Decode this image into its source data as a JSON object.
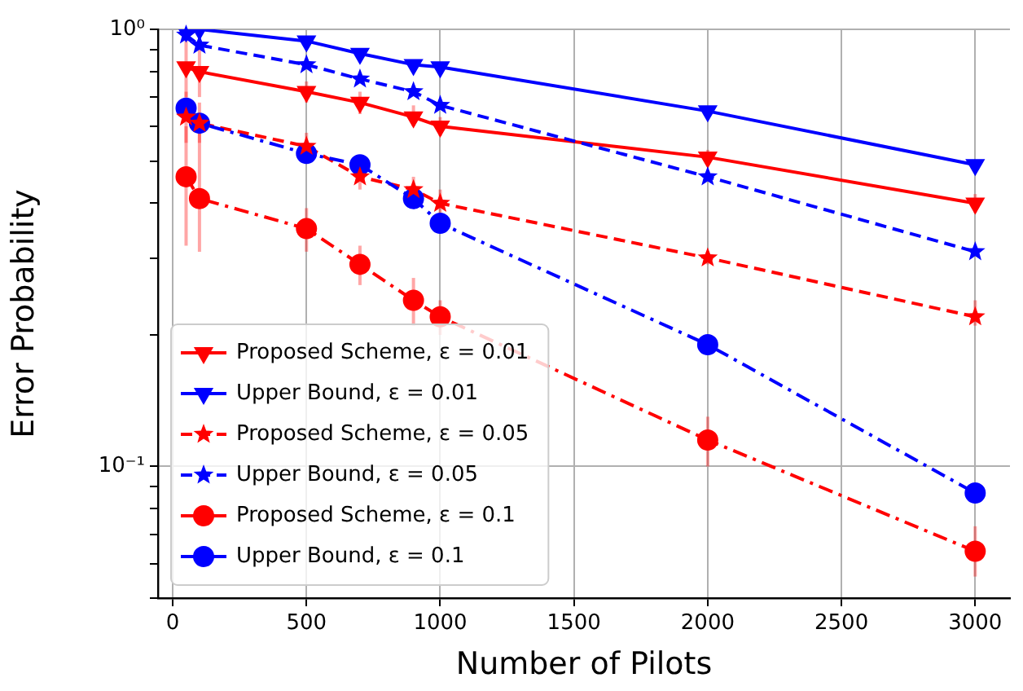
{
  "chart_data": {
    "type": "line",
    "xlabel": "Number of Pilots",
    "ylabel": "Error Probability",
    "log": "y",
    "grid": true,
    "legend": "bottom left",
    "x": [
      50,
      100,
      500,
      700,
      900,
      1000,
      2000,
      3000
    ],
    "xlim": [
      -55,
      3130
    ],
    "xticks": [
      0,
      500,
      1000,
      1500,
      2000,
      2500,
      3000
    ],
    "ylim": [
      0.05,
      1
    ],
    "yticks": [
      {
        "value": 0.05,
        "label": null
      },
      {
        "value": 0.06,
        "label": null
      },
      {
        "value": 0.07,
        "label": null
      },
      {
        "value": 0.08,
        "label": null
      },
      {
        "value": 0.09,
        "label": null
      },
      {
        "value": 0.1,
        "label": "10⁻¹"
      },
      {
        "value": 0.2,
        "label": null
      },
      {
        "value": 0.3,
        "label": null
      },
      {
        "value": 0.4,
        "label": null
      },
      {
        "value": 0.5,
        "label": null
      },
      {
        "value": 0.6,
        "label": null
      },
      {
        "value": 0.7,
        "label": null
      },
      {
        "value": 0.8,
        "label": null
      },
      {
        "value": 0.9,
        "label": null
      },
      {
        "value": 1,
        "label": "10⁰"
      }
    ],
    "series": [
      {
        "name": "Proposed Scheme, ε = 0.01",
        "color": "#ff0000",
        "marker": "triangle",
        "line_style": "solid",
        "values": [
          0.82,
          0.8,
          0.72,
          0.68,
          0.63,
          0.6,
          0.51,
          0.4
        ],
        "errors": [
          [
            0.7,
            0.95
          ],
          [
            0.7,
            0.92
          ],
          [
            0.68,
            0.76
          ],
          [
            0.64,
            0.72
          ],
          [
            0.6,
            0.67
          ],
          [
            0.57,
            0.63
          ],
          [
            0.49,
            0.53
          ],
          [
            0.38,
            0.42
          ]
        ]
      },
      {
        "name": "Upper Bound, ε = 0.01",
        "color": "#0000ff",
        "marker": "triangle",
        "line_style": "solid",
        "values": [
          0.99,
          1,
          0.94,
          0.88,
          0.83,
          0.82,
          0.65,
          0.49
        ]
      },
      {
        "name": "Proposed Scheme, ε = 0.05",
        "color": "#ff0000",
        "marker": "star",
        "line_style": "dashed",
        "values": [
          0.63,
          0.61,
          0.54,
          0.46,
          0.43,
          0.4,
          0.3,
          0.22
        ],
        "errors": [
          [
            0.55,
            0.72
          ],
          [
            0.55,
            0.68
          ],
          [
            0.5,
            0.58
          ],
          [
            0.43,
            0.49
          ],
          [
            0.4,
            0.46
          ],
          [
            0.38,
            0.43
          ],
          [
            0.29,
            0.31
          ],
          [
            0.21,
            0.24
          ]
        ]
      },
      {
        "name": "Upper Bound, ε = 0.05",
        "color": "#0000ff",
        "marker": "star",
        "line_style": "dashed",
        "values": [
          0.97,
          0.92,
          0.83,
          0.77,
          0.72,
          0.67,
          0.46,
          0.31
        ]
      },
      {
        "name": "Proposed Scheme, ε = 0.1",
        "color": "#ff0000",
        "marker": "circle",
        "line_style": "dashdot",
        "values": [
          0.46,
          0.41,
          0.35,
          0.29,
          0.24,
          0.22,
          0.115,
          0.064
        ],
        "errors": [
          [
            0.32,
            0.6
          ],
          [
            0.31,
            0.6
          ],
          [
            0.31,
            0.39
          ],
          [
            0.26,
            0.32
          ],
          [
            0.21,
            0.27
          ],
          [
            0.2,
            0.24
          ],
          [
            0.1,
            0.13
          ],
          [
            0.056,
            0.073
          ]
        ]
      },
      {
        "name": "Upper Bound, ε = 0.1",
        "color": "#0000ff",
        "marker": "circle",
        "line_style": "dashdot",
        "values": [
          0.66,
          0.61,
          0.52,
          0.49,
          0.41,
          0.36,
          0.19,
          0.087
        ]
      }
    ]
  }
}
